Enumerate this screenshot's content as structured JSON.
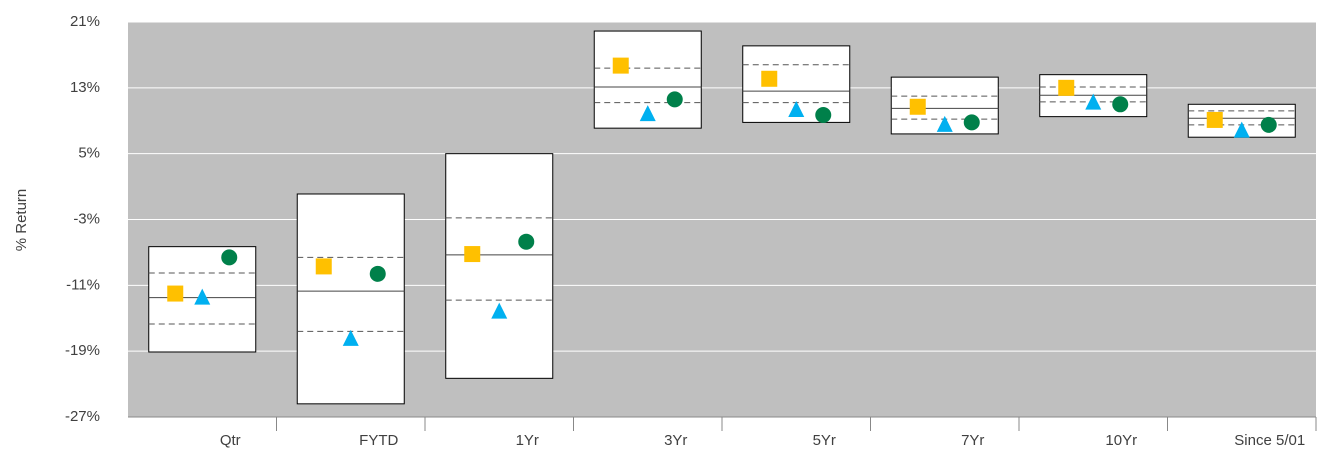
{
  "chart_data": {
    "type": "floating-box",
    "ylabel": "% Return",
    "categories": [
      "Qtr",
      "FYTD",
      "1Yr",
      "3Yr",
      "5Yr",
      "7Yr",
      "10Yr",
      "Since 5/01"
    ],
    "ranges": [
      {
        "high": -6.3,
        "upper": -9.5,
        "median": -12.5,
        "lower": -15.7,
        "low": -19.1
      },
      {
        "high": 0.1,
        "upper": -7.6,
        "median": -11.7,
        "lower": -16.6,
        "low": -25.4
      },
      {
        "high": 5.0,
        "upper": -2.8,
        "median": -7.3,
        "lower": -12.8,
        "low": -22.3
      },
      {
        "high": 19.9,
        "upper": 15.4,
        "median": 13.1,
        "lower": 11.2,
        "low": 8.1
      },
      {
        "high": 18.1,
        "upper": 15.8,
        "median": 12.6,
        "lower": 11.2,
        "low": 8.8
      },
      {
        "high": 14.3,
        "upper": 12.0,
        "median": 10.5,
        "lower": 9.2,
        "low": 7.4
      },
      {
        "high": 14.6,
        "upper": 13.1,
        "median": 12.1,
        "lower": 11.3,
        "low": 9.5
      },
      {
        "high": 11.0,
        "upper": 10.2,
        "median": 9.3,
        "lower": 8.5,
        "low": 7.0
      }
    ],
    "series": [
      {
        "marker": "square",
        "color": "#FFC000",
        "values": [
          -12.0,
          -8.7,
          -7.2,
          15.7,
          14.1,
          10.7,
          13.0,
          9.1
        ]
      },
      {
        "marker": "triangle",
        "color": "#00B0F0",
        "values": [
          -12.5,
          -17.5,
          -14.2,
          9.8,
          10.3,
          8.5,
          11.2,
          7.8
        ]
      },
      {
        "marker": "circle",
        "color": "#00804A",
        "values": [
          -7.6,
          -9.6,
          -5.7,
          11.6,
          9.7,
          8.8,
          11.0,
          8.5
        ]
      }
    ],
    "ylim": [
      -27,
      21
    ],
    "yticks": [
      {
        "value": 21,
        "label": "21%"
      },
      {
        "value": 13,
        "label": "13%"
      },
      {
        "value": 5,
        "label": "5%"
      },
      {
        "value": -3,
        "label": "-3%"
      },
      {
        "value": -11,
        "label": "-11%"
      },
      {
        "value": -19,
        "label": "-19%"
      },
      {
        "value": -27,
        "label": "-27%"
      }
    ],
    "grid": true,
    "plot_background": "#BFBFBF"
  }
}
